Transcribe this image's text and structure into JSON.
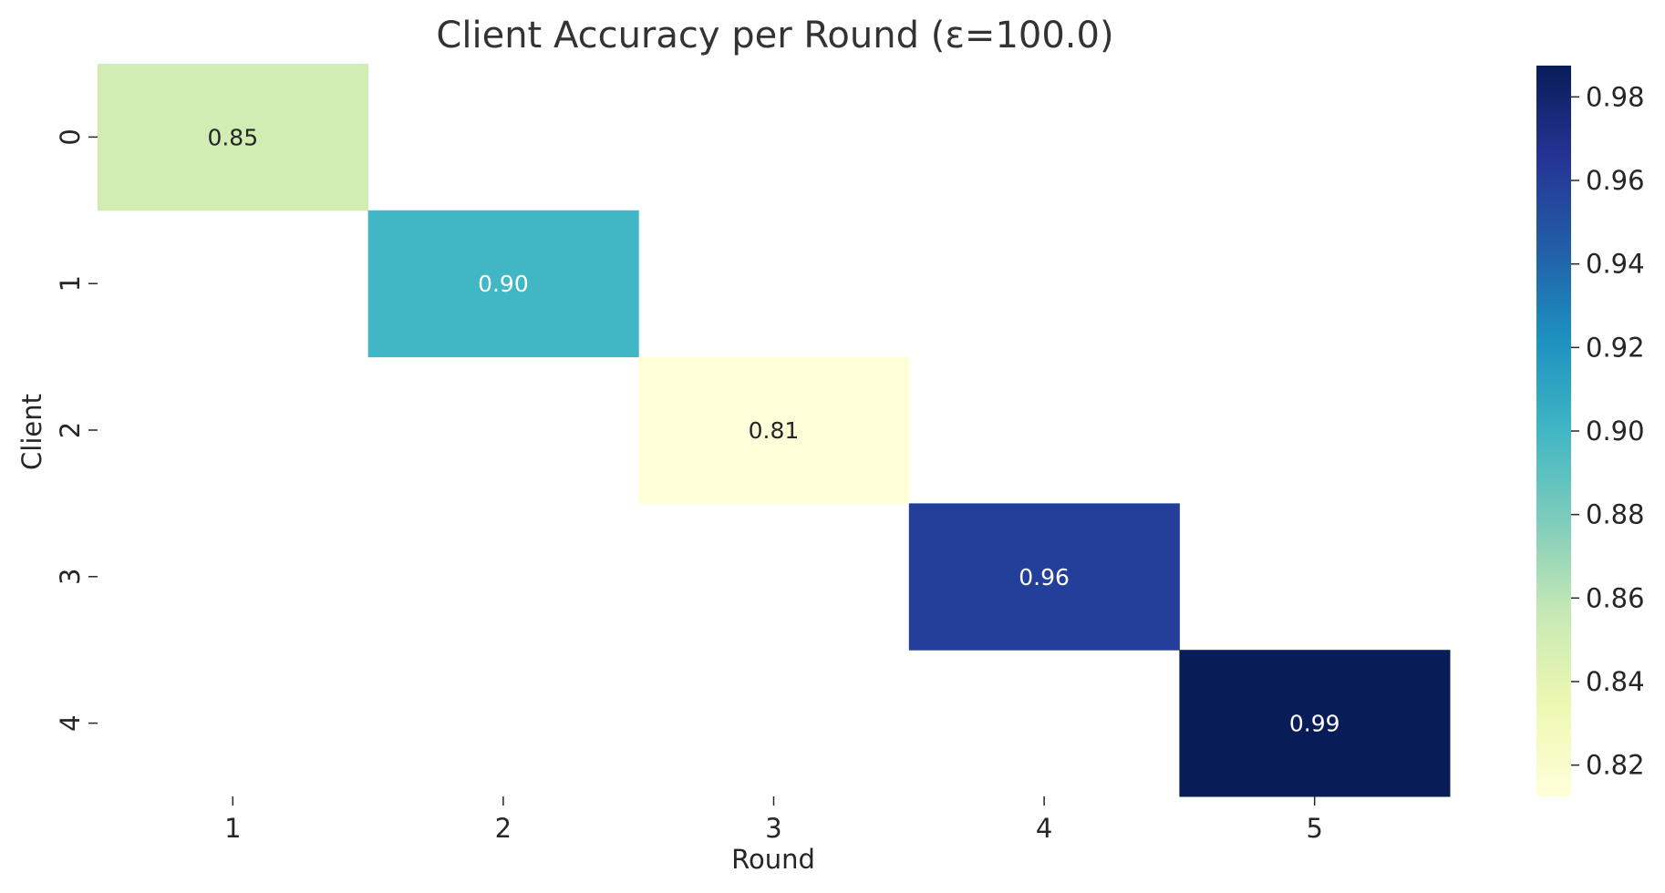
{
  "chart_data": {
    "type": "heatmap",
    "title": "Client Accuracy per Round (ε=100.0)",
    "xlabel": "Round",
    "ylabel": "Client",
    "x_categories": [
      "1",
      "2",
      "3",
      "4",
      "5"
    ],
    "y_categories": [
      "0",
      "1",
      "2",
      "3",
      "4"
    ],
    "cells": [
      {
        "client": "0",
        "round": "1",
        "value": 0.85,
        "label": "0.85"
      },
      {
        "client": "1",
        "round": "2",
        "value": 0.9,
        "label": "0.90"
      },
      {
        "client": "2",
        "round": "3",
        "value": 0.81,
        "label": "0.81"
      },
      {
        "client": "3",
        "round": "4",
        "value": 0.96,
        "label": "0.96"
      },
      {
        "client": "4",
        "round": "5",
        "value": 0.99,
        "label": "0.99"
      }
    ],
    "colormap": "YlGnBu",
    "colorbar": {
      "range": [
        0.8125,
        0.9875
      ],
      "ticks": [
        "0.82",
        "0.84",
        "0.86",
        "0.88",
        "0.90",
        "0.92",
        "0.94",
        "0.96",
        "0.98"
      ]
    },
    "empty_cells": "blank",
    "grid": false
  }
}
